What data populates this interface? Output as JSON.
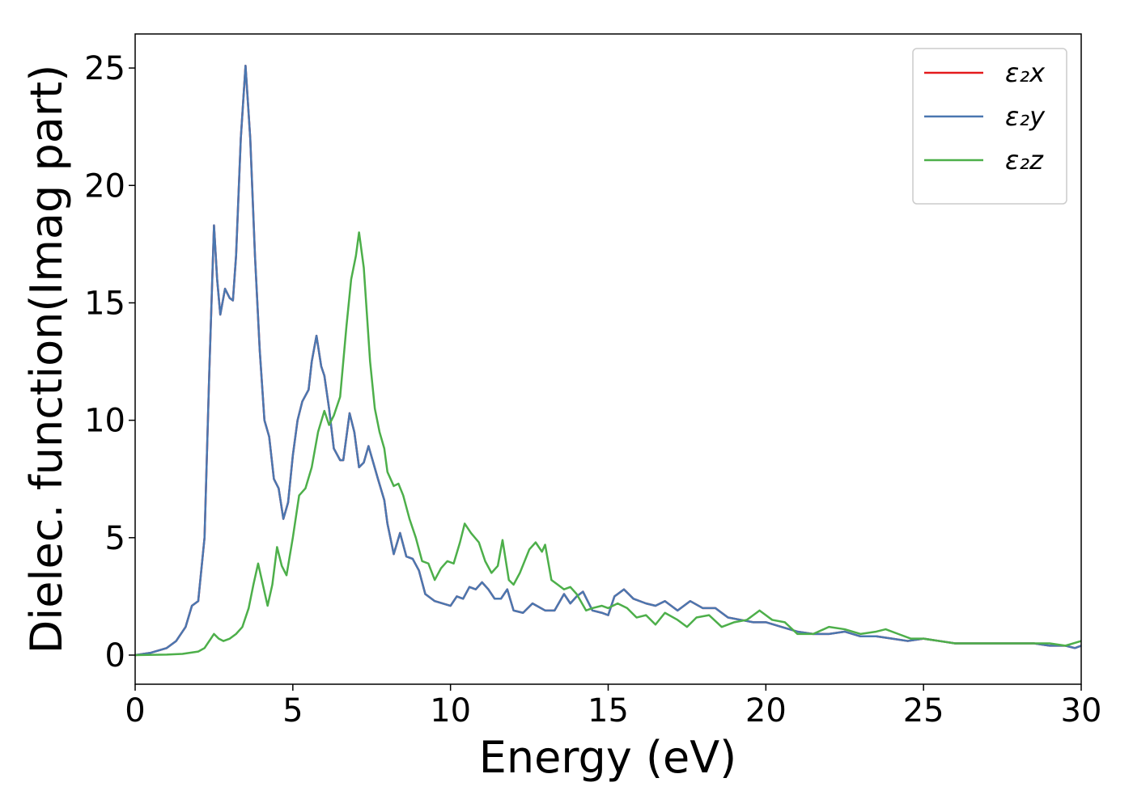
{
  "chart_data": {
    "type": "line",
    "xlabel": "Energy (eV)",
    "ylabel": "Dielec. function(Imag part)",
    "xlim": [
      0,
      30
    ],
    "ylim": [
      -1.24,
      26.45
    ],
    "xticks": [
      0,
      5,
      10,
      15,
      20,
      25,
      30
    ],
    "yticks": [
      0,
      5,
      10,
      15,
      20,
      25
    ],
    "legend": "upper right",
    "series": [
      {
        "name": "ε₂x",
        "color": "#e41a1c",
        "x": [
          0,
          0.5,
          1,
          1.3,
          1.6,
          1.8,
          2.0,
          2.2,
          2.35,
          2.5,
          2.6,
          2.7,
          2.85,
          3.0,
          3.1,
          3.2,
          3.35,
          3.5,
          3.65,
          3.8,
          3.95,
          4.1,
          4.25,
          4.4,
          4.55,
          4.7,
          4.85,
          5.0,
          5.15,
          5.3,
          5.5,
          5.6,
          5.75,
          5.9,
          6.0,
          6.15,
          6.3,
          6.5,
          6.6,
          6.8,
          6.95,
          7.1,
          7.25,
          7.4,
          7.55,
          7.7,
          7.9,
          8.0,
          8.2,
          8.4,
          8.6,
          8.8,
          9.0,
          9.2,
          9.5,
          10.0,
          10.2,
          10.4,
          10.6,
          10.8,
          11.0,
          11.2,
          11.4,
          11.6,
          11.8,
          12.0,
          12.3,
          12.6,
          13.0,
          13.3,
          13.6,
          13.8,
          14.0,
          14.2,
          14.5,
          14.8,
          15.0,
          15.2,
          15.5,
          15.8,
          16.2,
          16.5,
          16.8,
          17.2,
          17.6,
          18.0,
          18.4,
          18.8,
          19.2,
          19.6,
          20.0,
          20.5,
          21.0,
          21.5,
          22.0,
          22.5,
          23.0,
          23.5,
          24.0,
          24.5,
          25.0,
          25.5,
          26.0,
          26.5,
          27.0,
          27.5,
          28.0,
          28.5,
          29.0,
          29.5,
          29.8,
          30.0
        ],
        "values": [
          0,
          0.1,
          0.3,
          0.6,
          1.2,
          2.1,
          2.3,
          5,
          12,
          18.3,
          16,
          14.5,
          15.6,
          15.2,
          15.1,
          17,
          22,
          25.1,
          22,
          17,
          13,
          10,
          9.3,
          7.5,
          7.1,
          5.8,
          6.5,
          8.5,
          10,
          10.8,
          11.3,
          12.5,
          13.6,
          12.3,
          11.9,
          10.5,
          8.8,
          8.3,
          8.3,
          10.3,
          9.5,
          8.0,
          8.2,
          8.9,
          8.2,
          7.5,
          6.6,
          5.6,
          4.3,
          5.2,
          4.2,
          4.1,
          3.6,
          2.6,
          2.3,
          2.1,
          2.5,
          2.4,
          2.9,
          2.8,
          3.1,
          2.8,
          2.4,
          2.4,
          2.8,
          1.9,
          1.8,
          2.2,
          1.9,
          1.9,
          2.6,
          2.2,
          2.5,
          2.7,
          1.9,
          1.8,
          1.7,
          2.5,
          2.8,
          2.4,
          2.2,
          2.1,
          2.3,
          1.9,
          2.3,
          2.0,
          2.0,
          1.6,
          1.5,
          1.4,
          1.4,
          1.2,
          1.0,
          0.9,
          0.9,
          1.0,
          0.8,
          0.8,
          0.7,
          0.6,
          0.7,
          0.6,
          0.5,
          0.5,
          0.5,
          0.5,
          0.5,
          0.5,
          0.4,
          0.4,
          0.3,
          0.4
        ]
      },
      {
        "name": "ε₂y",
        "color": "#4a77b0",
        "x": [
          0,
          0.5,
          1,
          1.3,
          1.6,
          1.8,
          2.0,
          2.2,
          2.35,
          2.5,
          2.6,
          2.7,
          2.85,
          3.0,
          3.1,
          3.2,
          3.35,
          3.5,
          3.65,
          3.8,
          3.95,
          4.1,
          4.25,
          4.4,
          4.55,
          4.7,
          4.85,
          5.0,
          5.15,
          5.3,
          5.5,
          5.6,
          5.75,
          5.9,
          6.0,
          6.15,
          6.3,
          6.5,
          6.6,
          6.8,
          6.95,
          7.1,
          7.25,
          7.4,
          7.55,
          7.7,
          7.9,
          8.0,
          8.2,
          8.4,
          8.6,
          8.8,
          9.0,
          9.2,
          9.5,
          10.0,
          10.2,
          10.4,
          10.6,
          10.8,
          11.0,
          11.2,
          11.4,
          11.6,
          11.8,
          12.0,
          12.3,
          12.6,
          13.0,
          13.3,
          13.6,
          13.8,
          14.0,
          14.2,
          14.5,
          14.8,
          15.0,
          15.2,
          15.5,
          15.8,
          16.2,
          16.5,
          16.8,
          17.2,
          17.6,
          18.0,
          18.4,
          18.8,
          19.2,
          19.6,
          20.0,
          20.5,
          21.0,
          21.5,
          22.0,
          22.5,
          23.0,
          23.5,
          24.0,
          24.5,
          25.0,
          25.5,
          26.0,
          26.5,
          27.0,
          27.5,
          28.0,
          28.5,
          29.0,
          29.5,
          29.8,
          30.0
        ],
        "values": [
          0,
          0.1,
          0.3,
          0.6,
          1.2,
          2.1,
          2.3,
          5,
          12,
          18.3,
          16,
          14.5,
          15.6,
          15.2,
          15.1,
          17,
          22,
          25.1,
          22,
          17,
          13,
          10,
          9.3,
          7.5,
          7.1,
          5.8,
          6.5,
          8.5,
          10,
          10.8,
          11.3,
          12.5,
          13.6,
          12.3,
          11.9,
          10.5,
          8.8,
          8.3,
          8.3,
          10.3,
          9.5,
          8.0,
          8.2,
          8.9,
          8.2,
          7.5,
          6.6,
          5.6,
          4.3,
          5.2,
          4.2,
          4.1,
          3.6,
          2.6,
          2.3,
          2.1,
          2.5,
          2.4,
          2.9,
          2.8,
          3.1,
          2.8,
          2.4,
          2.4,
          2.8,
          1.9,
          1.8,
          2.2,
          1.9,
          1.9,
          2.6,
          2.2,
          2.5,
          2.7,
          1.9,
          1.8,
          1.7,
          2.5,
          2.8,
          2.4,
          2.2,
          2.1,
          2.3,
          1.9,
          2.3,
          2.0,
          2.0,
          1.6,
          1.5,
          1.4,
          1.4,
          1.2,
          1.0,
          0.9,
          0.9,
          1.0,
          0.8,
          0.8,
          0.7,
          0.6,
          0.7,
          0.6,
          0.5,
          0.5,
          0.5,
          0.5,
          0.5,
          0.5,
          0.4,
          0.4,
          0.3,
          0.4
        ]
      },
      {
        "name": "ε₂z",
        "color": "#4daf4a",
        "x": [
          0,
          1,
          1.5,
          2.0,
          2.2,
          2.4,
          2.5,
          2.65,
          2.8,
          3.0,
          3.2,
          3.4,
          3.6,
          3.75,
          3.9,
          4.05,
          4.2,
          4.35,
          4.5,
          4.65,
          4.8,
          5.0,
          5.2,
          5.4,
          5.6,
          5.8,
          6.0,
          6.15,
          6.3,
          6.5,
          6.7,
          6.85,
          7.0,
          7.1,
          7.25,
          7.45,
          7.6,
          7.75,
          7.9,
          8.0,
          8.2,
          8.35,
          8.5,
          8.7,
          8.9,
          9.1,
          9.3,
          9.5,
          9.7,
          9.9,
          10.1,
          10.3,
          10.45,
          10.65,
          10.9,
          11.1,
          11.3,
          11.5,
          11.65,
          11.85,
          12.0,
          12.2,
          12.5,
          12.7,
          12.9,
          13.0,
          13.2,
          13.4,
          13.6,
          13.8,
          14.0,
          14.3,
          14.5,
          14.8,
          15.0,
          15.3,
          15.6,
          15.9,
          16.2,
          16.5,
          16.8,
          17.2,
          17.5,
          17.8,
          18.2,
          18.6,
          19.0,
          19.4,
          19.8,
          20.2,
          20.6,
          21.0,
          21.5,
          22.0,
          22.5,
          23.0,
          23.5,
          23.8,
          24.2,
          24.6,
          25.0,
          25.5,
          26.0,
          26.5,
          27.0,
          27.5,
          28.0,
          28.5,
          29.0,
          29.5,
          30.0
        ],
        "values": [
          0,
          0.02,
          0.05,
          0.15,
          0.3,
          0.7,
          0.9,
          0.7,
          0.6,
          0.7,
          0.9,
          1.2,
          2.0,
          3.0,
          3.9,
          3.0,
          2.1,
          3.0,
          4.6,
          3.8,
          3.4,
          5.0,
          6.8,
          7.1,
          8.0,
          9.5,
          10.4,
          9.8,
          10.2,
          11.0,
          14.0,
          16.0,
          17.0,
          18.0,
          16.5,
          12.5,
          10.5,
          9.5,
          8.8,
          7.8,
          7.2,
          7.3,
          6.8,
          5.8,
          5.0,
          4.0,
          3.9,
          3.2,
          3.7,
          4.0,
          3.9,
          4.8,
          5.6,
          5.2,
          4.8,
          4.0,
          3.5,
          3.8,
          4.9,
          3.2,
          3.0,
          3.5,
          4.5,
          4.8,
          4.4,
          4.7,
          3.2,
          3.0,
          2.8,
          2.9,
          2.6,
          1.9,
          2.0,
          2.1,
          2.0,
          2.2,
          2.0,
          1.6,
          1.7,
          1.3,
          1.8,
          1.5,
          1.2,
          1.6,
          1.7,
          1.2,
          1.4,
          1.5,
          1.9,
          1.5,
          1.4,
          0.9,
          0.9,
          1.2,
          1.1,
          0.9,
          1.0,
          1.1,
          0.9,
          0.7,
          0.7,
          0.6,
          0.5,
          0.5,
          0.5,
          0.5,
          0.5,
          0.5,
          0.5,
          0.4,
          0.6
        ]
      }
    ]
  }
}
